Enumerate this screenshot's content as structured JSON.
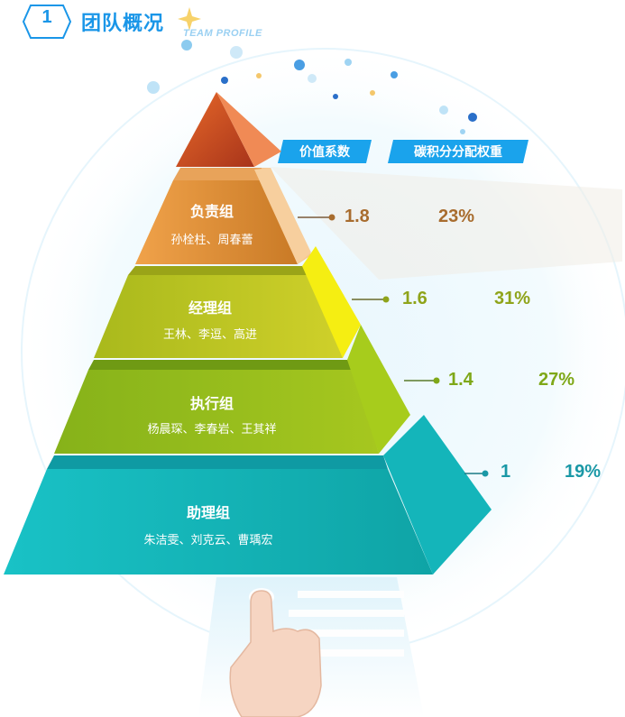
{
  "header": {
    "number": "1",
    "title": "团队概况",
    "subtitle": "TEAM PROFILE"
  },
  "columns": {
    "coefficient": "价值系数",
    "carbon_weight": "碳积分分配权重"
  },
  "tiers": [
    {
      "name": "负责组",
      "members": "孙栓柱、周春蕾",
      "coefficient": "1.8",
      "weight": "23%",
      "color": "#a86c2e"
    },
    {
      "name": "经理组",
      "members": "王林、李逗、高进",
      "coefficient": "1.6",
      "weight": "31%",
      "color": "#8fa41a"
    },
    {
      "name": "执行组",
      "members": "杨晨琛、李春岩、王其祥",
      "coefficient": "1.4",
      "weight": "27%",
      "color": "#7fa818"
    },
    {
      "name": "助理组",
      "members": "朱洁雯、刘克云、曹瑀宏",
      "coefficient": "1",
      "weight": "19%",
      "color": "#1a98a6"
    }
  ],
  "colors": {
    "brand_blue": "#1a96e8",
    "header_label_bg": "#1aa3ec"
  }
}
